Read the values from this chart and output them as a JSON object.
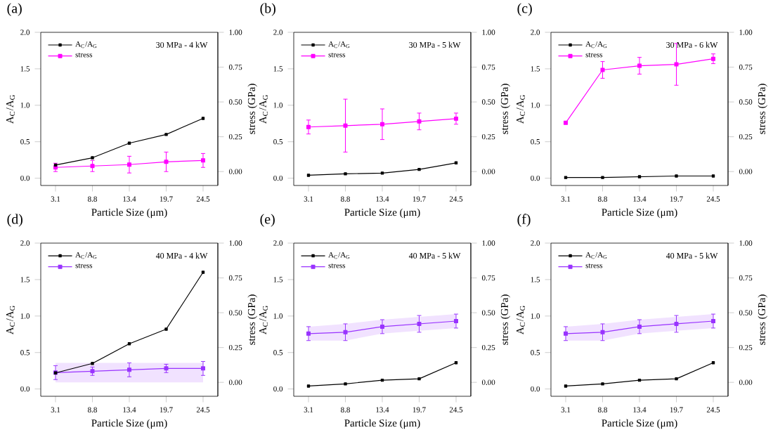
{
  "chart_data": [
    {
      "type": "line",
      "title": "(a)",
      "xlabel": "Particle Size (μm)",
      "ylabel": "A$_{C}$/A$_{G}$",
      "y2label": "stress (GPa)",
      "annotations": [
        "30 MPa - 4 kW"
      ],
      "categories": [
        "3.1",
        "8.8",
        "13.4",
        "19.7",
        "24.5"
      ],
      "ylim": [
        -0.1,
        2.0
      ],
      "yticks": [
        {
          "value": 0,
          "label": "0.0"
        },
        {
          "value": 0.5,
          "label": "0.5"
        },
        {
          "value": 1,
          "label": "1.0"
        },
        {
          "value": 1.5,
          "label": "1.5"
        },
        {
          "value": 2,
          "label": "2.0"
        }
      ],
      "y2lim": [
        -0.1,
        1.0
      ],
      "y2ticks": [
        {
          "value": 0,
          "label": "0.00"
        },
        {
          "value": 0.25,
          "label": "0.25"
        },
        {
          "value": 0.5,
          "label": "0.50"
        },
        {
          "value": 0.75,
          "label": "0.75"
        },
        {
          "value": 1,
          "label": "1.00"
        }
      ],
      "legend": "top left",
      "marker": "square",
      "series": [
        {
          "name": "A$_{C}$/A$_{G}$",
          "color": "#000000",
          "values": [
            0.18,
            0.28,
            0.48,
            0.6,
            0.82
          ]
        },
        {
          "name": "stress",
          "color": "#ff00ff",
          "axis": "y2",
          "values": [
            0.03,
            0.04,
            0.05,
            0.07,
            0.08
          ],
          "errors": [
            0.03,
            0.04,
            0.06,
            0.07,
            0.05
          ]
        }
      ]
    },
    {
      "type": "line",
      "title": "(b)",
      "xlabel": "Particle Size (μm)",
      "ylabel": "A$_{C}$/A$_{G}$",
      "y2label": "stress (GPa)",
      "annotations": [
        "30 MPa - 5 kW"
      ],
      "categories": [
        "3.1",
        "8.8",
        "13.4",
        "19.7",
        "24.5"
      ],
      "ylim": [
        -0.1,
        2.0
      ],
      "yticks": [
        {
          "value": 0,
          "label": "0.0"
        },
        {
          "value": 0.5,
          "label": "0.5"
        },
        {
          "value": 1,
          "label": "1.0"
        },
        {
          "value": 1.5,
          "label": "1.5"
        },
        {
          "value": 2,
          "label": "2.0"
        }
      ],
      "y2lim": [
        -0.1,
        1.0
      ],
      "y2ticks": [
        {
          "value": 0,
          "label": "0.00"
        },
        {
          "value": 0.25,
          "label": "0.25"
        },
        {
          "value": 0.5,
          "label": "0.50"
        },
        {
          "value": 0.75,
          "label": "0.75"
        },
        {
          "value": 1,
          "label": "1.00"
        }
      ],
      "legend": "top left",
      "marker": "square",
      "series": [
        {
          "name": "A$_{C}$/A$_{G}$",
          "color": "#000000",
          "values": [
            0.04,
            0.06,
            0.07,
            0.12,
            0.21
          ]
        },
        {
          "name": "stress",
          "color": "#ff00ff",
          "axis": "y2",
          "values": [
            0.32,
            0.33,
            0.34,
            0.36,
            0.38
          ],
          "errors": [
            0.05,
            0.19,
            0.11,
            0.06,
            0.04
          ]
        }
      ]
    },
    {
      "type": "line",
      "title": "(c)",
      "xlabel": "Particle Size (μm)",
      "ylabel": "A$_{C}$/A$_{G}$",
      "y2label": "stress (GPa)",
      "annotations": [
        "30 MPa - 6 kW"
      ],
      "categories": [
        "3.1",
        "8.8",
        "13.4",
        "19.7",
        "24.5"
      ],
      "ylim": [
        -0.1,
        2.0
      ],
      "yticks": [
        {
          "value": 0,
          "label": "0.0"
        },
        {
          "value": 0.5,
          "label": "0.5"
        },
        {
          "value": 1,
          "label": "1.0"
        },
        {
          "value": 1.5,
          "label": "1.5"
        },
        {
          "value": 2,
          "label": "2.0"
        }
      ],
      "y2lim": [
        -0.1,
        1.0
      ],
      "y2ticks": [
        {
          "value": 0,
          "label": "0.00"
        },
        {
          "value": 0.25,
          "label": "0.25"
        },
        {
          "value": 0.5,
          "label": "0.50"
        },
        {
          "value": 0.75,
          "label": "0.75"
        },
        {
          "value": 1,
          "label": "1.00"
        }
      ],
      "legend": "top left",
      "marker": "square",
      "series": [
        {
          "name": "A$_{C}$/A$_{G}$",
          "color": "#000000",
          "values": [
            0.01,
            0.01,
            0.02,
            0.03,
            0.03
          ]
        },
        {
          "name": "stress",
          "color": "#ff00ff",
          "axis": "y2",
          "values": [
            0.35,
            0.73,
            0.76,
            0.77,
            0.81
          ],
          "errors": [
            null,
            0.06,
            0.06,
            0.15,
            0.035
          ]
        }
      ]
    },
    {
      "type": "line",
      "title": "(d)",
      "xlabel": "Particle Size (μm)",
      "ylabel": "A$_{C}$/A$_{G}$",
      "y2label": "stress (GPa)",
      "annotations": [
        "40 MPa - 4 kW"
      ],
      "categories": [
        "3.1",
        "8.8",
        "13.4",
        "19.7",
        "24.5"
      ],
      "ylim": [
        -0.1,
        2.0
      ],
      "yticks": [
        {
          "value": 0,
          "label": "0.0"
        },
        {
          "value": 0.5,
          "label": "0.5"
        },
        {
          "value": 1,
          "label": "1.0"
        },
        {
          "value": 1.5,
          "label": "1.5"
        },
        {
          "value": 2,
          "label": "2.0"
        }
      ],
      "y2lim": [
        -0.1,
        1.0
      ],
      "y2ticks": [
        {
          "value": 0,
          "label": "0.00"
        },
        {
          "value": 0.25,
          "label": "0.25"
        },
        {
          "value": 0.5,
          "label": "0.50"
        },
        {
          "value": 0.75,
          "label": "0.75"
        },
        {
          "value": 1,
          "label": "1.00"
        }
      ],
      "legend": "top left",
      "marker": "square",
      "series": [
        {
          "name": "A$_{C}$/A$_{G}$",
          "color": "#000000",
          "values": [
            0.22,
            0.35,
            0.62,
            0.82,
            1.6
          ]
        },
        {
          "name": "stress",
          "color": "#9933ff",
          "axis": "y2",
          "values": [
            0.07,
            0.08,
            0.09,
            0.1,
            0.1
          ],
          "errors": [
            0.05,
            0.03,
            0.05,
            0.03,
            0.05
          ],
          "lower": [
            0.0,
            0.0,
            0.0,
            0.0,
            0.0
          ],
          "upper": [
            0.14,
            0.14,
            0.14,
            0.14,
            0.14
          ]
        }
      ]
    },
    {
      "type": "line",
      "title": "(e)",
      "xlabel": "Particle Size (μm)",
      "ylabel": "A$_{C}$/A$_{G}$",
      "y2label": "stress (GPa)",
      "annotations": [
        "40 MPa - 5 kW"
      ],
      "categories": [
        "3.1",
        "8.8",
        "13.4",
        "19.7",
        "24.5"
      ],
      "ylim": [
        -0.1,
        2.0
      ],
      "yticks": [
        {
          "value": 0,
          "label": "0.0"
        },
        {
          "value": 0.5,
          "label": "0.5"
        },
        {
          "value": 1,
          "label": "1.0"
        },
        {
          "value": 1.5,
          "label": "1.5"
        },
        {
          "value": 2,
          "label": "2.0"
        }
      ],
      "y2lim": [
        -0.1,
        1.0
      ],
      "y2ticks": [
        {
          "value": 0,
          "label": "0.00"
        },
        {
          "value": 0.25,
          "label": "0.25"
        },
        {
          "value": 0.5,
          "label": "0.50"
        },
        {
          "value": 0.75,
          "label": "0.75"
        },
        {
          "value": 1,
          "label": "1.00"
        }
      ],
      "legend": "top left",
      "marker": "square",
      "series": [
        {
          "name": "A$_{C}$/A$_{G}$",
          "color": "#000000",
          "values": [
            0.04,
            0.07,
            0.12,
            0.14,
            0.36
          ]
        },
        {
          "name": "stress",
          "color": "#9933ff",
          "axis": "y2",
          "values": [
            0.35,
            0.36,
            0.4,
            0.42,
            0.44
          ],
          "errors": [
            0.05,
            0.06,
            0.05,
            0.06,
            0.05
          ],
          "lower": [
            0.3,
            0.3,
            0.35,
            0.37,
            0.39
          ],
          "upper": [
            0.4,
            0.42,
            0.45,
            0.47,
            0.49
          ]
        }
      ]
    },
    {
      "type": "line",
      "title": "(f)",
      "xlabel": "Particle Size (μm)",
      "ylabel": "A$_{C}$/A$_{G}$",
      "y2label": "stress (GPa)",
      "annotations": [
        "40 MPa - 5 kW"
      ],
      "categories": [
        "3.1",
        "8.8",
        "13.4",
        "19.7",
        "24.5"
      ],
      "ylim": [
        -0.1,
        2.0
      ],
      "yticks": [
        {
          "value": 0,
          "label": "0.0"
        },
        {
          "value": 0.5,
          "label": "0.5"
        },
        {
          "value": 1,
          "label": "1.0"
        },
        {
          "value": 1.5,
          "label": "1.5"
        },
        {
          "value": 2,
          "label": "2.0"
        }
      ],
      "y2lim": [
        -0.1,
        1.0
      ],
      "y2ticks": [
        {
          "value": 0,
          "label": "0.00"
        },
        {
          "value": 0.25,
          "label": "0.25"
        },
        {
          "value": 0.5,
          "label": "0.50"
        },
        {
          "value": 0.75,
          "label": "0.75"
        },
        {
          "value": 1,
          "label": "1.00"
        }
      ],
      "legend": "top left",
      "marker": "square",
      "series": [
        {
          "name": "A$_{C}$/A$_{G}$",
          "color": "#000000",
          "values": [
            0.04,
            0.07,
            0.12,
            0.14,
            0.36
          ]
        },
        {
          "name": "stress",
          "color": "#9933ff",
          "axis": "y2",
          "values": [
            0.35,
            0.36,
            0.4,
            0.42,
            0.44
          ],
          "errors": [
            0.05,
            0.06,
            0.05,
            0.06,
            0.05
          ],
          "lower": [
            0.3,
            0.3,
            0.35,
            0.37,
            0.39
          ],
          "upper": [
            0.4,
            0.42,
            0.45,
            0.47,
            0.49
          ]
        }
      ]
    }
  ]
}
